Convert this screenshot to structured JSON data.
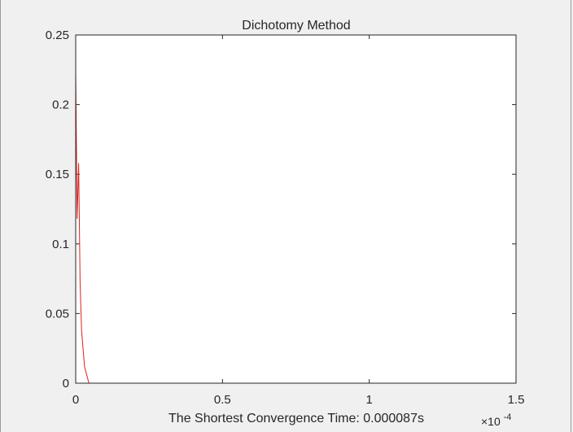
{
  "chart_data": {
    "type": "line",
    "title": "Dichotomy Method",
    "xlabel": "The Shortest Convergence Time: 0.000087s",
    "ylabel": "",
    "x_exponent_label": "×10",
    "x_exponent_power": "-4",
    "xlim": [
      0,
      1.5
    ],
    "ylim": [
      0,
      0.25
    ],
    "xticks": [
      0,
      0.5,
      1,
      1.5
    ],
    "xtick_labels": [
      "0",
      "0.5",
      "1",
      "1.5"
    ],
    "yticks": [
      0,
      0.05,
      0.1,
      0.15,
      0.2,
      0.25
    ],
    "ytick_labels": [
      "0",
      "0.05",
      "0.1",
      "0.15",
      "0.2",
      "0.25"
    ],
    "grid": false,
    "legend": "none",
    "series": [
      {
        "color": "#e0201b",
        "x": [
          0,
          0.005,
          0.01,
          0.015,
          0.02,
          0.03,
          0.045,
          0.07,
          0.1,
          0.5,
          1,
          1.5
        ],
        "y": [
          0.224,
          0.118,
          0.158,
          0.072,
          0.038,
          0.012,
          0,
          0,
          0,
          0,
          0,
          0
        ]
      }
    ]
  }
}
